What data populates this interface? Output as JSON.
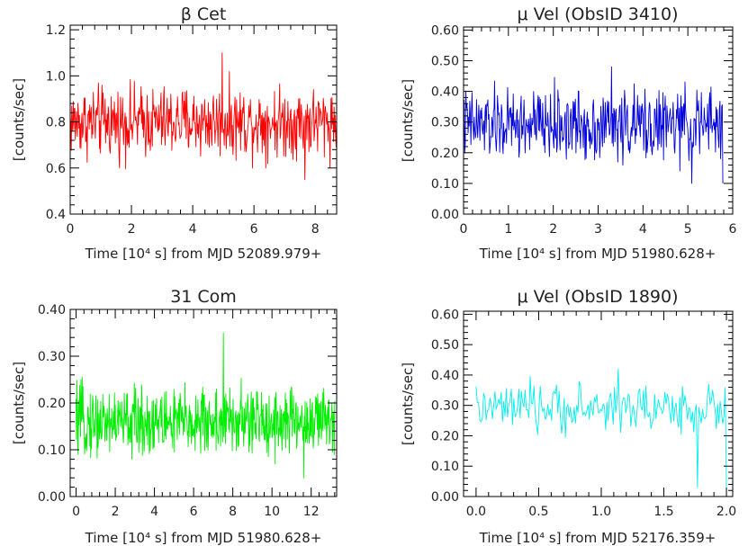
{
  "chart_data": [
    {
      "type": "line",
      "title": "β Cet",
      "xlabel": "Time [10⁴ s] from MJD 52089.979+",
      "ylabel": "[counts/sec]",
      "xlim": [
        0,
        8.7
      ],
      "ylim": [
        0.4,
        1.22
      ],
      "xticks": [
        0,
        2,
        4,
        6,
        8
      ],
      "yticks": [
        0.4,
        0.6,
        0.8,
        1.0,
        1.2
      ],
      "xtick_labels": [
        "0",
        "2",
        "4",
        "6",
        "8"
      ],
      "ytick_labels": [
        "0.4",
        "0.6",
        "0.8",
        "1.0",
        "1.2"
      ],
      "grid": false,
      "color": "#ff0000",
      "series": [
        {
          "x_range": [
            0,
            8.7
          ],
          "mean": 0.8,
          "min": 0.55,
          "max": 1.1,
          "samples": 520
        }
      ]
    },
    {
      "type": "line",
      "title": "μ Vel (ObsID 3410)",
      "xlabel": "Time [10⁴ s] from MJD 51980.628+",
      "ylabel": "[counts/sec]",
      "xlim": [
        0,
        6
      ],
      "ylim": [
        0,
        0.61
      ],
      "xticks": [
        0,
        1,
        2,
        3,
        4,
        5,
        6
      ],
      "yticks": [
        0,
        0.1,
        0.2,
        0.3,
        0.4,
        0.5,
        0.6
      ],
      "xtick_labels": [
        "0",
        "1",
        "2",
        "3",
        "4",
        "5",
        "6"
      ],
      "ytick_labels": [
        "0.00",
        "0.10",
        "0.20",
        "0.30",
        "0.40",
        "0.50",
        "0.60"
      ],
      "grid": false,
      "color": "#0000dd",
      "series": [
        {
          "x_range": [
            0,
            5.78
          ],
          "mean": 0.29,
          "min": 0.1,
          "max": 0.48,
          "samples": 460
        }
      ]
    },
    {
      "type": "line",
      "title": "31 Com",
      "xlabel": "Time [10⁴ s] from MJD 51980.628+",
      "ylabel": "[counts/sec]",
      "xlim": [
        -0.3,
        13.3
      ],
      "ylim": [
        0,
        0.4
      ],
      "xticks": [
        0,
        2,
        4,
        6,
        8,
        10,
        12
      ],
      "yticks": [
        0,
        0.1,
        0.2,
        0.3,
        0.4
      ],
      "xtick_labels": [
        "0",
        "2",
        "4",
        "6",
        "8",
        "10",
        "12"
      ],
      "ytick_labels": [
        "0.00",
        "0.10",
        "0.20",
        "0.30",
        "0.40"
      ],
      "grid": false,
      "color": "#00ee00",
      "series": [
        {
          "x_range": [
            0,
            13.2
          ],
          "mean": 0.16,
          "min": 0.04,
          "max": 0.35,
          "samples": 640
        }
      ]
    },
    {
      "type": "line",
      "title": "μ Vel (ObsID 1890)",
      "xlabel": "Time [10⁴ s] from MJD 52176.359+",
      "ylabel": "[counts/sec]",
      "xlim": [
        -0.1,
        2.05
      ],
      "ylim": [
        0,
        0.61
      ],
      "xticks": [
        0,
        0.5,
        1,
        1.5,
        2
      ],
      "yticks": [
        0,
        0.1,
        0.2,
        0.3,
        0.4,
        0.5,
        0.6
      ],
      "xtick_labels": [
        "0.0",
        "0.5",
        "1.0",
        "1.5",
        "2.0"
      ],
      "ytick_labels": [
        "0.00",
        "0.10",
        "0.20",
        "0.30",
        "0.40",
        "0.50",
        "0.60"
      ],
      "grid": false,
      "color": "#00eeee",
      "series": [
        {
          "x_range": [
            0,
            2
          ],
          "mean": 0.29,
          "min": 0.03,
          "max": 0.42,
          "samples": 200
        }
      ]
    }
  ]
}
